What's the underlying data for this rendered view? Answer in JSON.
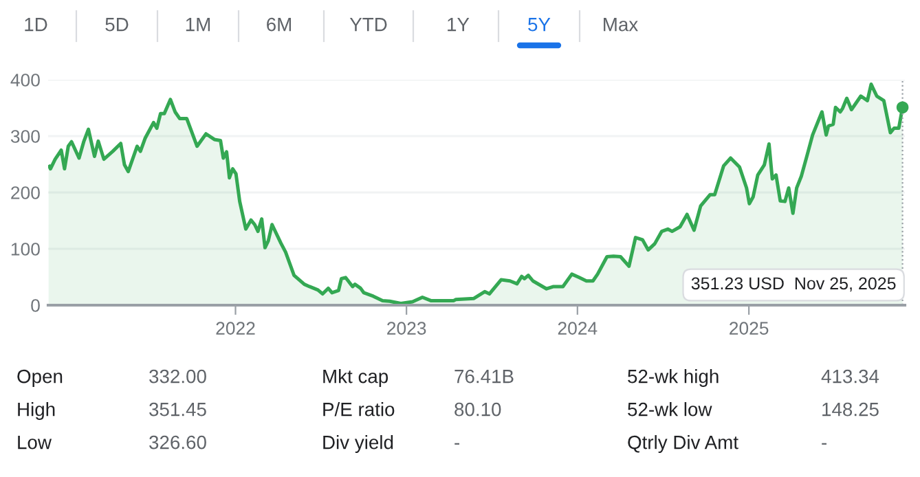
{
  "chart_data": [
    {
      "type": "other",
      "categories": [
        "1D",
        "5D",
        "1M",
        "6M",
        "YTD",
        "1Y",
        "5Y",
        "Max"
      ],
      "colors": [
        "#5f6368",
        "#5f6368",
        "#5f6368",
        "#5f6368",
        "#5f6368",
        "#5f6368",
        "#1a73e8",
        "#5f6368"
      ]
    },
    {
      "type": "area",
      "grid": "y",
      "xlim": [
        "2020-11-27",
        "2025-11-30"
      ],
      "ylim": [
        0,
        400
      ],
      "yticks": [
        0,
        100,
        200,
        300,
        400
      ],
      "xticks": [
        "2022",
        "2023",
        "2024",
        "2025"
      ],
      "series": [
        {
          "color": "#34a853",
          "x": [
            "2020-11-28",
            "2020-12-02",
            "2020-12-12",
            "2020-12-25",
            "2021-01-01",
            "2021-01-09",
            "2021-01-16",
            "2021-02-01",
            "2021-02-11",
            "2021-02-21",
            "2021-03-06",
            "2021-03-14",
            "2021-03-26",
            "2021-04-14",
            "2021-05-01",
            "2021-05-09",
            "2021-05-17",
            "2021-06-05",
            "2021-06-12",
            "2021-06-22",
            "2021-07-10",
            "2021-07-17",
            "2021-07-25",
            "2021-08-02",
            "2021-08-15",
            "2021-08-25",
            "2021-09-04",
            "2021-09-19",
            "2021-10-11",
            "2021-10-30",
            "2021-11-17",
            "2021-11-30",
            "2021-12-06",
            "2021-12-13",
            "2021-12-19",
            "2021-12-26",
            "2022-01-02",
            "2022-01-10",
            "2022-01-23",
            "2022-02-03",
            "2022-02-11",
            "2022-02-18",
            "2022-02-26",
            "2022-03-05",
            "2022-03-12",
            "2022-03-20",
            "2022-04-08",
            "2022-04-18",
            "2022-05-06",
            "2022-05-28",
            "2022-06-08",
            "2022-06-26",
            "2022-07-06",
            "2022-07-18",
            "2022-07-26",
            "2022-08-09",
            "2022-08-15",
            "2022-08-24",
            "2022-09-08",
            "2022-09-13",
            "2022-09-25",
            "2022-10-02",
            "2022-10-22",
            "2022-11-11",
            "2022-11-26",
            "2022-12-20",
            "2023-01-14",
            "2023-02-04",
            "2023-02-22",
            "2023-03-19",
            "2023-04-12",
            "2023-04-16",
            "2023-05-25",
            "2023-06-17",
            "2023-06-27",
            "2023-07-22",
            "2023-08-10",
            "2023-08-25",
            "2023-09-04",
            "2023-09-10",
            "2023-09-18",
            "2023-09-28",
            "2023-10-27",
            "2023-11-11",
            "2023-12-01",
            "2023-12-20",
            "2024-01-05",
            "2024-01-20",
            "2024-02-03",
            "2024-02-13",
            "2024-03-04",
            "2024-03-18",
            "2024-04-02",
            "2024-04-20",
            "2024-05-04",
            "2024-05-19",
            "2024-05-31",
            "2024-06-14",
            "2024-06-29",
            "2024-07-12",
            "2024-07-21",
            "2024-08-07",
            "2024-08-22",
            "2024-09-06",
            "2024-09-20",
            "2024-10-10",
            "2024-10-20",
            "2024-11-08",
            "2024-11-23",
            "2024-12-12",
            "2024-12-27",
            "2025-01-02",
            "2025-01-10",
            "2025-01-20",
            "2025-02-03",
            "2025-02-13",
            "2025-02-20",
            "2025-02-28",
            "2025-03-09",
            "2025-03-19",
            "2025-03-27",
            "2025-04-05",
            "2025-04-13",
            "2025-04-23",
            "2025-05-05",
            "2025-05-17",
            "2025-06-06",
            "2025-06-15",
            "2025-06-20",
            "2025-06-30",
            "2025-07-05",
            "2025-07-15",
            "2025-07-20",
            "2025-07-29",
            "2025-08-08",
            "2025-08-28",
            "2025-09-11",
            "2025-09-19",
            "2025-10-01",
            "2025-10-16",
            "2025-10-30",
            "2025-11-07",
            "2025-11-17",
            "2025-11-25"
          ],
          "values": [
            249,
            242,
            259,
            275,
            242,
            282,
            290,
            261,
            290,
            312,
            264,
            291,
            259,
            273,
            287,
            249,
            237,
            282,
            273,
            296,
            324,
            314,
            340,
            340,
            365,
            343,
            331,
            331,
            282,
            304,
            294,
            292,
            261,
            272,
            226,
            242,
            233,
            184,
            135,
            151,
            143,
            131,
            153,
            102,
            114,
            143,
            110,
            94,
            53,
            37,
            33,
            27,
            20,
            30,
            22,
            26,
            47,
            49,
            33,
            37,
            30,
            22,
            16,
            8,
            7,
            3,
            6,
            14,
            8,
            8,
            8,
            10,
            12,
            24,
            20,
            45,
            43,
            38,
            51,
            47,
            53,
            43,
            29,
            33,
            33,
            55,
            49,
            43,
            43,
            55,
            86,
            87,
            86,
            69,
            120,
            116,
            98,
            109,
            131,
            135,
            131,
            139,
            161,
            133,
            176,
            196,
            196,
            247,
            261,
            245,
            208,
            180,
            192,
            231,
            249,
            286,
            224,
            231,
            185,
            184,
            208,
            163,
            208,
            229,
            265,
            302,
            343,
            302,
            318,
            321,
            351,
            343,
            349,
            367,
            347,
            371,
            363,
            392,
            371,
            363,
            306,
            314,
            314,
            351
          ]
        },
        {
          "type": "scatter",
          "marker": "circle",
          "color": "#34a853",
          "x": [
            "2025-11-25"
          ],
          "values": [
            351
          ]
        }
      ],
      "ref_lines": [
        {
          "axis": "x",
          "value": "2025-11-25",
          "color": "#9aa0a6",
          "line_style": "dotted"
        }
      ],
      "annotations": [
        "351.23 USD  Nov 25, 2025"
      ]
    },
    {
      "type": "other",
      "annotations": [
        "Open",
        "332.00",
        "Mkt cap",
        "76.41B",
        "52-wk high",
        "413.34",
        "High",
        "351.45",
        "P/E ratio",
        "80.10",
        "52-wk low",
        "148.25",
        "Low",
        "326.60",
        "Div yield",
        "-",
        "Qtrly Div Amt",
        "-"
      ]
    }
  ]
}
